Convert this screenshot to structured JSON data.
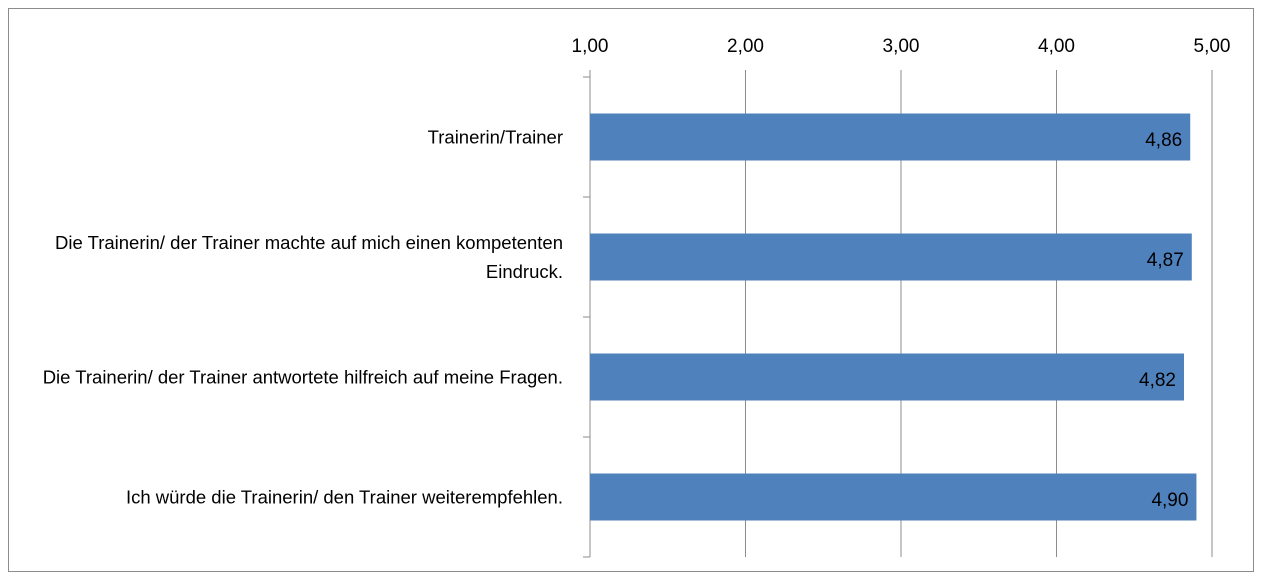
{
  "chart_data": {
    "type": "bar",
    "orientation": "horizontal",
    "categories": [
      "Trainerin/Trainer",
      "Die Trainerin/ der Trainer machte auf mich einen kompetenten Eindruck.",
      "Die Trainerin/ der Trainer antwortete hilfreich auf meine Fragen.",
      "Ich würde die Trainerin/ den Trainer weiterempfehlen."
    ],
    "values": [
      4.86,
      4.87,
      4.82,
      4.9
    ],
    "value_labels": [
      "4,86",
      "4,87",
      "4,82",
      "4,90"
    ],
    "color": "#4f81bd",
    "xlim": [
      1,
      5
    ],
    "xticks": [
      {
        "value": 1,
        "label": "1,00"
      },
      {
        "value": 2,
        "label": "2,00"
      },
      {
        "value": 3,
        "label": "3,00"
      },
      {
        "value": 4,
        "label": "4,00"
      },
      {
        "value": 5,
        "label": "5,00"
      }
    ],
    "grid": true
  }
}
